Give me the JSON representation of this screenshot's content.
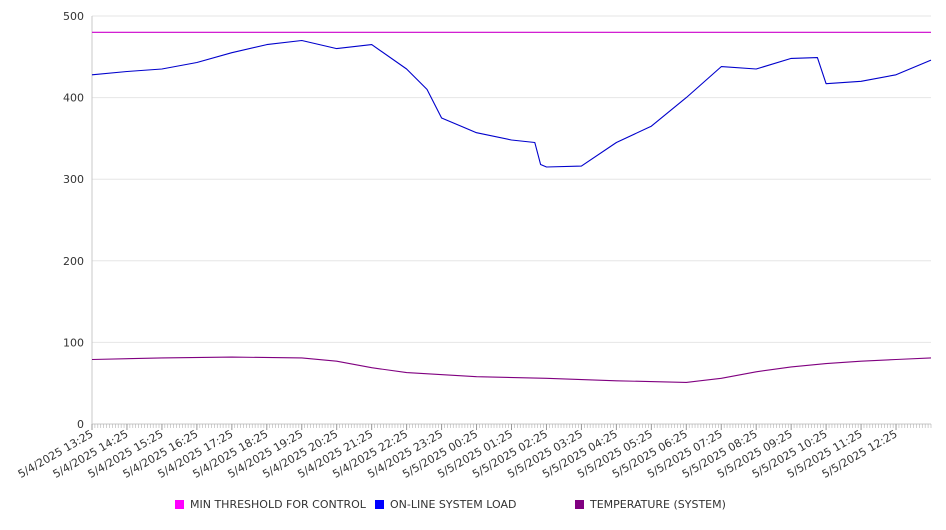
{
  "chart_data": {
    "type": "line",
    "title": "",
    "xlabel": "",
    "ylabel": "",
    "ylim": [
      0,
      500
    ],
    "yticks": [
      0,
      100,
      200,
      300,
      400,
      500
    ],
    "grid": true,
    "legend_position": "bottom",
    "x_tick_labels": [
      "5/4/2025 13:25",
      "5/4/2025 14:25",
      "5/4/2025 15:25",
      "5/4/2025 16:25",
      "5/4/2025 17:25",
      "5/4/2025 18:25",
      "5/4/2025 19:25",
      "5/4/2025 20:25",
      "5/4/2025 21:25",
      "5/4/2025 22:25",
      "5/4/2025 23:25",
      "5/5/2025 00:25",
      "5/5/2025 01:25",
      "5/5/2025 02:25",
      "5/5/2025 03:25",
      "5/5/2025 04:25",
      "5/5/2025 05:25",
      "5/5/2025 06:25",
      "5/5/2025 07:25",
      "5/5/2025 08:25",
      "5/5/2025 09:25",
      "5/5/2025 10:25",
      "5/5/2025 11:25",
      "5/5/2025 12:25"
    ],
    "x_start": "5/4/2025 13:25",
    "x_end": "5/5/2025 13:25",
    "series": [
      {
        "name": "MIN THRESHOLD FOR CONTROL",
        "color": "#cc00cc",
        "values": [
          {
            "x": "5/4/2025 13:25",
            "y": 480
          },
          {
            "x": "5/5/2025 13:25",
            "y": 480
          }
        ]
      },
      {
        "name": "ON-LINE SYSTEM LOAD",
        "color": "#0000cc",
        "values": [
          {
            "x": "5/4/2025 13:25",
            "y": 428
          },
          {
            "x": "5/4/2025 14:25",
            "y": 432
          },
          {
            "x": "5/4/2025 15:25",
            "y": 435
          },
          {
            "x": "5/4/2025 16:25",
            "y": 443
          },
          {
            "x": "5/4/2025 17:25",
            "y": 455
          },
          {
            "x": "5/4/2025 18:25",
            "y": 465
          },
          {
            "x": "5/4/2025 19:25",
            "y": 470
          },
          {
            "x": "5/4/2025 20:25",
            "y": 460
          },
          {
            "x": "5/4/2025 21:25",
            "y": 465
          },
          {
            "x": "5/4/2025 22:25",
            "y": 435
          },
          {
            "x": "5/4/2025 23:00",
            "y": 410
          },
          {
            "x": "5/4/2025 23:25",
            "y": 375
          },
          {
            "x": "5/5/2025 00:25",
            "y": 357
          },
          {
            "x": "5/5/2025 01:25",
            "y": 348
          },
          {
            "x": "5/5/2025 02:05",
            "y": 345
          },
          {
            "x": "5/5/2025 02:15",
            "y": 318
          },
          {
            "x": "5/5/2025 02:25",
            "y": 315
          },
          {
            "x": "5/5/2025 03:25",
            "y": 316
          },
          {
            "x": "5/5/2025 04:25",
            "y": 345
          },
          {
            "x": "5/5/2025 05:25",
            "y": 365
          },
          {
            "x": "5/5/2025 06:25",
            "y": 400
          },
          {
            "x": "5/5/2025 07:25",
            "y": 438
          },
          {
            "x": "5/5/2025 08:25",
            "y": 435
          },
          {
            "x": "5/5/2025 09:25",
            "y": 448
          },
          {
            "x": "5/5/2025 10:10",
            "y": 449
          },
          {
            "x": "5/5/2025 10:25",
            "y": 417
          },
          {
            "x": "5/5/2025 11:25",
            "y": 420
          },
          {
            "x": "5/5/2025 12:25",
            "y": 428
          },
          {
            "x": "5/5/2025 13:25",
            "y": 446
          }
        ]
      },
      {
        "name": "TEMPERATURE (SYSTEM)",
        "color": "#800080",
        "values": [
          {
            "x": "5/4/2025 13:25",
            "y": 79
          },
          {
            "x": "5/4/2025 15:25",
            "y": 81
          },
          {
            "x": "5/4/2025 17:25",
            "y": 82
          },
          {
            "x": "5/4/2025 19:25",
            "y": 81
          },
          {
            "x": "5/4/2025 20:25",
            "y": 77
          },
          {
            "x": "5/4/2025 21:25",
            "y": 69
          },
          {
            "x": "5/4/2025 22:25",
            "y": 63
          },
          {
            "x": "5/5/2025 00:25",
            "y": 58
          },
          {
            "x": "5/5/2025 02:25",
            "y": 56
          },
          {
            "x": "5/5/2025 04:25",
            "y": 53
          },
          {
            "x": "5/5/2025 06:25",
            "y": 51
          },
          {
            "x": "5/5/2025 07:25",
            "y": 56
          },
          {
            "x": "5/5/2025 08:25",
            "y": 64
          },
          {
            "x": "5/5/2025 09:25",
            "y": 70
          },
          {
            "x": "5/5/2025 10:25",
            "y": 74
          },
          {
            "x": "5/5/2025 11:25",
            "y": 77
          },
          {
            "x": "5/5/2025 12:25",
            "y": 79
          },
          {
            "x": "5/5/2025 13:25",
            "y": 81
          }
        ]
      }
    ]
  }
}
